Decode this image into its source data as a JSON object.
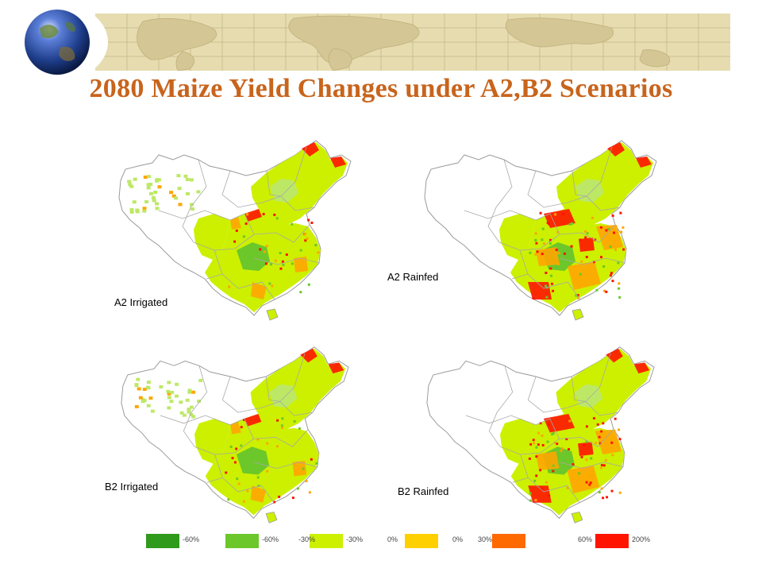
{
  "title": "2080 Maize Yield Changes under A2,B2 Scenarios",
  "maps": [
    {
      "label": "A2 Irrigated",
      "variant": "irrigated"
    },
    {
      "label": "A2 Rainfed",
      "variant": "rainfed"
    },
    {
      "label": "B2 Irrigated",
      "variant": "irrigated"
    },
    {
      "label": "B2 Rainfed",
      "variant": "rainfed"
    }
  ],
  "legend": [
    {
      "label": "-60%",
      "color": "#2f9a1c"
    },
    {
      "label": "-60%",
      "color": "#6cc72a"
    },
    {
      "label": "-30%",
      "color": "#bde866"
    },
    {
      "label": "-30%",
      "color": "#ccf000"
    },
    {
      "label": "0%",
      "color": "#ffd000"
    },
    {
      "label": "0%",
      "color": "#ffa500"
    },
    {
      "label": "30%",
      "color": "#ff6a00"
    },
    {
      "label": "60%",
      "color": "#ff1400"
    },
    {
      "label": "200%",
      "color": ""
    }
  ],
  "colors": {
    "title": "#c8641c",
    "banner": "#e6dcb0",
    "map_yellow_green": "#ccf000",
    "map_light_green": "#bde866",
    "map_green": "#6cc72a",
    "map_orange": "#ffa500",
    "map_red": "#ff1400"
  }
}
